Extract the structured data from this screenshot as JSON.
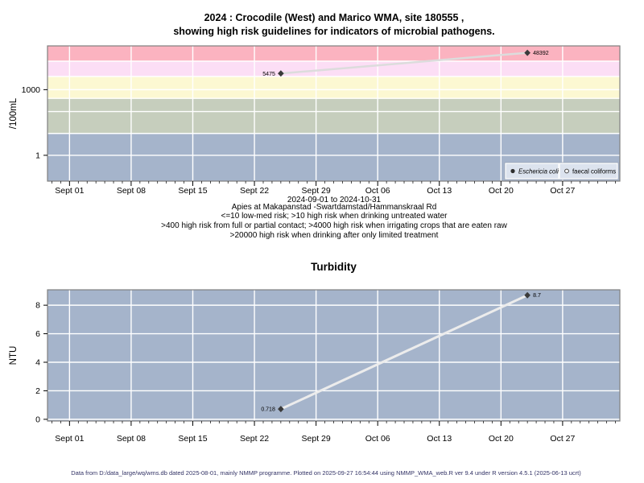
{
  "header": {
    "title_line1": "2024 : Crocodile (West) and Marico WMA, site 180555 ,",
    "title_line2": "showing high risk guidelines for indicators of microbial pathogens."
  },
  "footer": {
    "text": "Data from D:/data_large/wq/wms.db dated 2025-08-01, mainly NMMP programme. Plotted on 2025-09-27 16:54:44 using NMMP_WMA_web.R ver 9.4 under R version 4.5.1 (2025-06-13 ucrt)",
    "color": "#333366"
  },
  "chart_data": [
    {
      "type": "line",
      "title": "",
      "ylabel": "/100mL",
      "y_scale": "log10",
      "x_tick_labels": [
        "Sept 01",
        "Sept 08",
        "Sept 15",
        "Sept 22",
        "Sept 29",
        "Oct 06",
        "Oct 13",
        "Oct 20",
        "Oct 27"
      ],
      "x_tick_days": [
        0,
        7,
        14,
        21,
        28,
        35,
        42,
        49,
        56
      ],
      "x_range_days": [
        -2.5,
        62.5
      ],
      "y_log_range": [
        -1.18,
        5.0
      ],
      "y_tick_values": [
        1,
        1000
      ],
      "y_tick_labels": [
        "1",
        "1000"
      ],
      "gridline_values": [
        1,
        10,
        100,
        400,
        1000,
        4000,
        20000
      ],
      "grid_color": "#ffffff",
      "bands": [
        {
          "from": null,
          "to": 10,
          "color": "#a5b4cb"
        },
        {
          "from": 10,
          "to": 400,
          "color": "#c6cebd"
        },
        {
          "from": 400,
          "to": 4000,
          "color": "#fcf8d2"
        },
        {
          "from": 4000,
          "to": 20000,
          "color": "#fcdef5"
        },
        {
          "from": 20000,
          "to": null,
          "color": "#fbb3c0"
        }
      ],
      "band_thresholds": [
        10,
        400,
        4000,
        20000
      ],
      "series": [
        {
          "name": "Eschericia coli",
          "marker": "filled-diamond",
          "marker_color": "#3a3a3a",
          "line_color": "#dcdcdc",
          "points": [
            {
              "day": 24,
              "value": 5475,
              "label": "5475",
              "label_side": "left"
            },
            {
              "day": 52,
              "value": 48392,
              "label": "48392",
              "label_side": "right"
            }
          ]
        }
      ],
      "legend": [
        {
          "marker": "filled-circle",
          "label": "Eschericia coli",
          "italic": true
        },
        {
          "marker": "open-circle",
          "label": "faecal coliforms",
          "italic": false
        }
      ],
      "legend_bg": "#dce3ee",
      "subtitle_lines": [
        "2024-09-01 to 2024-10-31",
        "Apies at Makapanstad -Swartdamstad/Hammanskraal Rd",
        "<=10 low-med risk; >10 high risk when drinking untreated water",
        ">400 high risk from full or partial contact; >4000 high risk when irrigating crops that are eaten raw",
        ">20000 high risk when drinking after only limited treatment"
      ]
    },
    {
      "type": "line",
      "title": "Turbidity",
      "ylabel": "NTU",
      "x_tick_labels": [
        "Sept 01",
        "Sept 08",
        "Sept 15",
        "Sept 22",
        "Sept 29",
        "Oct 06",
        "Oct 13",
        "Oct 20",
        "Oct 27"
      ],
      "x_tick_days": [
        0,
        7,
        14,
        21,
        28,
        35,
        42,
        49,
        56
      ],
      "x_range_days": [
        -2.5,
        62.5
      ],
      "ylim": [
        -0.12,
        9.08
      ],
      "y_tick_values": [
        0,
        2,
        4,
        6,
        8
      ],
      "y_tick_labels": [
        "0",
        "2",
        "4",
        "6",
        "8"
      ],
      "bg_color": "#a5b4cb",
      "grid_color": "#ffffff",
      "series": [
        {
          "name": "Turbidity",
          "marker": "filled-diamond",
          "marker_color": "#3a3a3a",
          "line_color": "#ececec",
          "points": [
            {
              "day": 24,
              "value": 0.718,
              "label": "0.718",
              "label_side": "left"
            },
            {
              "day": 52,
              "value": 8.7,
              "label": "8.7",
              "label_side": "right"
            }
          ]
        }
      ]
    }
  ]
}
